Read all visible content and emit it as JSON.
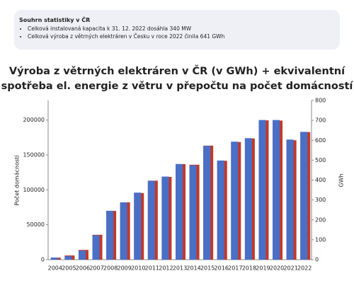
{
  "summary": {
    "title": "Souhrn statistiky v ČR",
    "items": [
      "Celková instalovaná kapacita k 31. 12. 2022 dosáhla 340 MW",
      "Celková výroba z větrných elektráren v Česku v roce 2022 činila 641 GWh"
    ]
  },
  "chart_data": {
    "type": "bar",
    "title": [
      "Výroba z větrných elektráren v ČR  (v GWh)  +  ekvivalentní",
      "spotřeba el. energie z větru v přepočtu na  počet domácností"
    ],
    "ylabel": "Počet domácností",
    "y2label": "GWh",
    "categories": [
      "2004",
      "2005",
      "2006",
      "2007",
      "2008",
      "2009",
      "2010",
      "2011",
      "2012",
      "2013",
      "2014",
      "2015",
      "2016",
      "2017",
      "2018",
      "2019",
      "2020",
      "2021",
      "2022"
    ],
    "series": [
      {
        "color": "#c0392b",
        "axis": "y2",
        "values": [
          10,
          21,
          49,
          125,
          245,
          288,
          335,
          397,
          416,
          480,
          477,
          573,
          497,
          591,
          609,
          700,
          699,
          600,
          641
        ]
      },
      {
        "color": "#4a6fc7",
        "values": [
          3000,
          5000,
          13000,
          35000,
          70000,
          82000,
          96000,
          113000,
          119000,
          137000,
          135000,
          163000,
          142000,
          169000,
          174000,
          200000,
          200000,
          172000,
          183000
        ]
      }
    ],
    "ylim": [
      0,
      228000
    ],
    "yticks": [
      0,
      50000,
      100000,
      150000,
      200000
    ],
    "y2lim": [
      0,
      800
    ],
    "y2ticks": [
      0,
      100,
      200,
      300,
      400,
      500,
      600,
      700,
      800
    ],
    "grid": false
  }
}
